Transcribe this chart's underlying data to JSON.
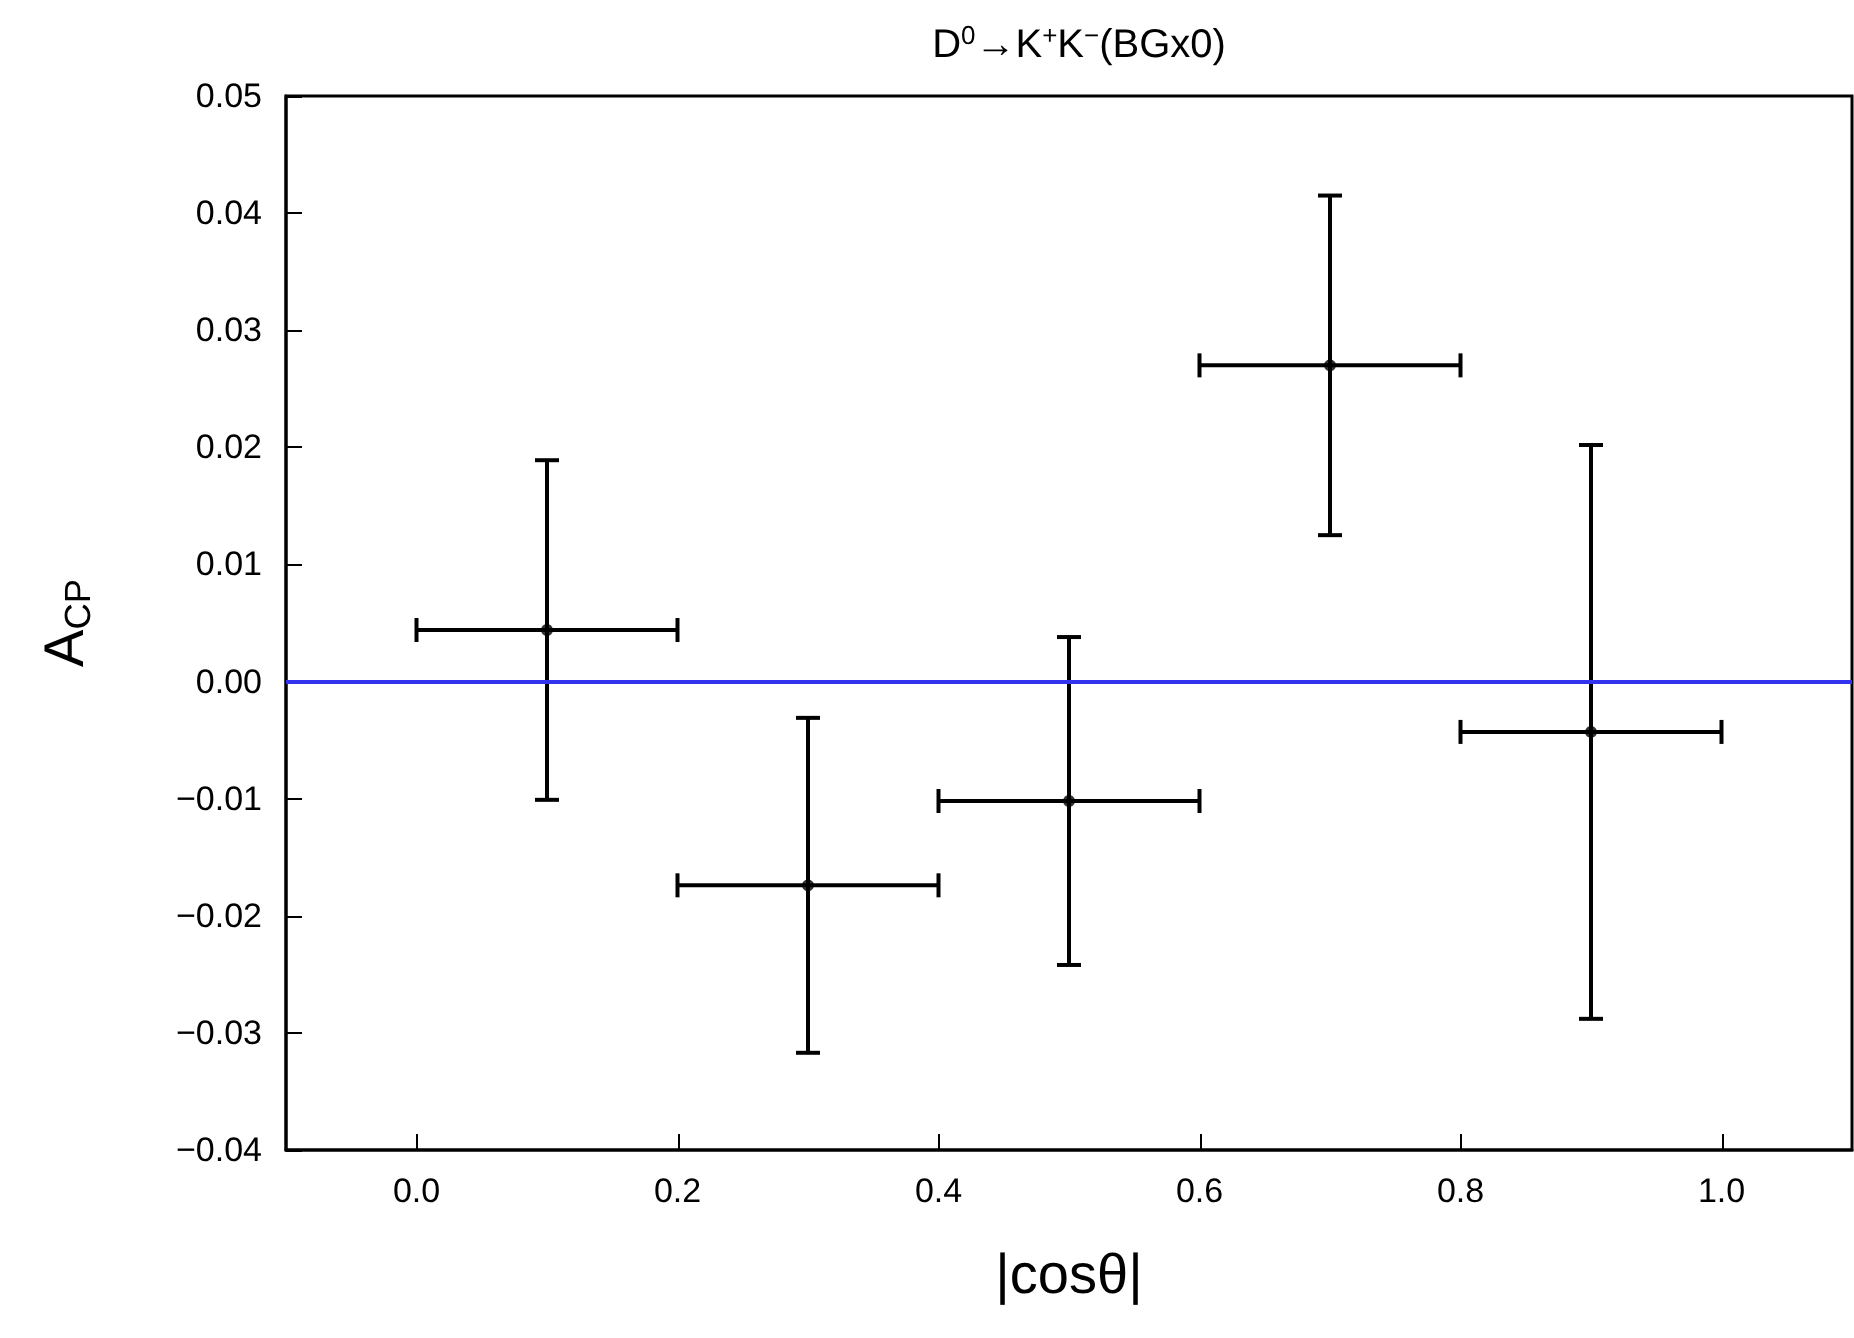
{
  "chart_data": {
    "type": "scatter",
    "title": "D$^{0}$→K$^{+}$K$^{−}$(BGx0)",
    "xlabel": "|cosθ|",
    "ylabel": "A$_{CP}$",
    "x": [
      0.1,
      0.3,
      0.5,
      0.7,
      0.9
    ],
    "series": [
      {
        "color": "#000000",
        "values": [
          0.0044,
          -0.0174,
          -0.0102,
          0.027,
          -0.0043
        ],
        "errors": [
          0.0145,
          0.0143,
          0.014,
          0.0145,
          0.0245
        ],
        "xerrors": [
          0.1,
          0.1,
          0.1,
          0.1,
          0.1
        ]
      }
    ],
    "marker": "circle",
    "xlim": [
      -0.1,
      1.1
    ],
    "ylim": [
      -0.04,
      0.05
    ],
    "xticks": [
      {
        "value": 0,
        "label": "0.0"
      },
      0.2,
      0.4,
      0.6,
      0.8,
      {
        "value": 1,
        "label": "1.0"
      }
    ],
    "yticks": [
      {
        "value": -0.04,
        "label": "−0.04"
      },
      {
        "value": -0.03,
        "label": "−0.03"
      },
      {
        "value": -0.02,
        "label": "−0.02"
      },
      {
        "value": -0.01,
        "label": "−0.01"
      },
      {
        "value": 0,
        "label": "0.00"
      },
      {
        "value": 0.01,
        "label": "0.01"
      },
      {
        "value": 0.02,
        "label": "0.02"
      },
      {
        "value": 0.03,
        "label": "0.03"
      },
      {
        "value": 0.04,
        "label": "0.04"
      },
      {
        "value": 0.05,
        "label": "0.05"
      }
    ],
    "ref_lines": [
      {
        "axis": "y",
        "value": 0,
        "color": "#3333ee"
      }
    ]
  }
}
